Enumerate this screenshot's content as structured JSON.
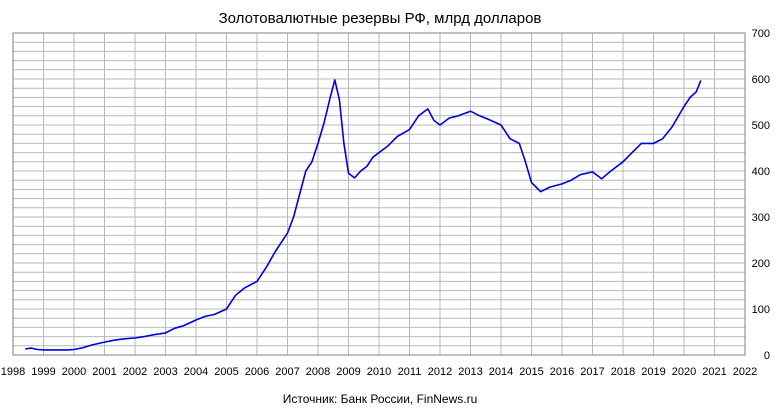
{
  "chart_data": {
    "type": "line",
    "title": "Золотовалютные резервы РФ, млрд долларов",
    "source": "Источник: Банк России, FinNews.ru",
    "xlabel": "",
    "ylabel": "",
    "xlim": [
      1998,
      2022
    ],
    "ylim": [
      0,
      700
    ],
    "x_ticks": [
      "1998",
      "1999",
      "2000",
      "2001",
      "2002",
      "2003",
      "2004",
      "2005",
      "2006",
      "2007",
      "2008",
      "2009",
      "2010",
      "2011",
      "2012",
      "2013",
      "2014",
      "2015",
      "2016",
      "2017",
      "2018",
      "2019",
      "2020",
      "2021",
      "2022"
    ],
    "y_ticks": [
      "0",
      "100",
      "200",
      "300",
      "400",
      "500",
      "600",
      "700"
    ],
    "y_axis_side": "right",
    "grid": true,
    "color": "#0000e0",
    "series": [
      {
        "x": [
          1998.4,
          1998.6,
          1998.8,
          1999.0,
          1999.2,
          1999.5,
          1999.8,
          2000.0,
          2000.3,
          2000.6,
          2001.0,
          2001.3,
          2001.6,
          2002.0,
          2002.3,
          2002.6,
          2003.0,
          2003.3,
          2003.6,
          2004.0,
          2004.3,
          2004.6,
          2005.0,
          2005.3,
          2005.6,
          2006.0,
          2006.3,
          2006.6,
          2007.0,
          2007.2,
          2007.4,
          2007.6,
          2007.8,
          2008.0,
          2008.2,
          2008.4,
          2008.55,
          2008.7,
          2008.85,
          2009.0,
          2009.2,
          2009.4,
          2009.6,
          2009.8,
          2010.0,
          2010.3,
          2010.6,
          2011.0,
          2011.3,
          2011.6,
          2011.8,
          2012.0,
          2012.3,
          2012.6,
          2013.0,
          2013.3,
          2013.6,
          2014.0,
          2014.3,
          2014.6,
          2014.8,
          2015.0,
          2015.3,
          2015.6,
          2016.0,
          2016.3,
          2016.6,
          2017.0,
          2017.3,
          2017.6,
          2018.0,
          2018.3,
          2018.6,
          2019.0,
          2019.3,
          2019.6,
          2020.0,
          2020.2,
          2020.4,
          2020.55
        ],
        "y": [
          13,
          15,
          12,
          11,
          11,
          11,
          11,
          12,
          16,
          22,
          28,
          32,
          35,
          37,
          40,
          44,
          48,
          58,
          64,
          76,
          84,
          88,
          100,
          130,
          146,
          160,
          190,
          225,
          265,
          300,
          350,
          400,
          420,
          460,
          505,
          560,
          598,
          555,
          460,
          395,
          385,
          400,
          410,
          430,
          440,
          455,
          475,
          490,
          520,
          535,
          510,
          500,
          515,
          520,
          530,
          520,
          512,
          500,
          470,
          460,
          420,
          375,
          355,
          365,
          372,
          380,
          392,
          398,
          383,
          400,
          420,
          440,
          460,
          460,
          470,
          495,
          540,
          560,
          572,
          597
        ]
      }
    ]
  }
}
